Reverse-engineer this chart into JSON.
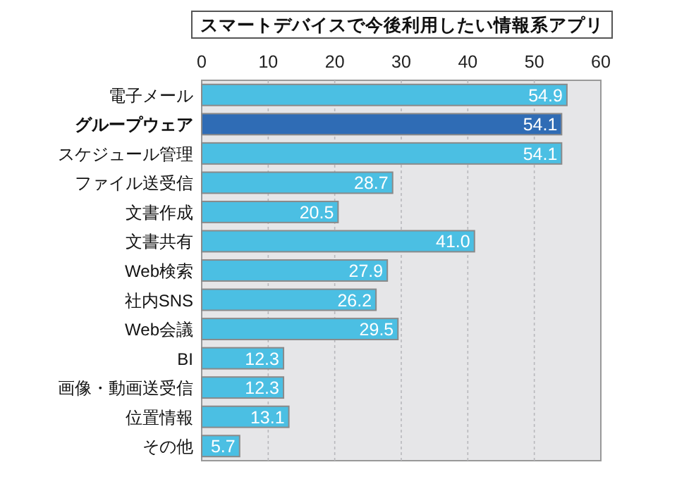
{
  "chart_data": {
    "type": "bar",
    "orientation": "horizontal",
    "title": "スマートデバイスで今後利用したい情報系アプリ",
    "categories": [
      "電子メール",
      "グループウェア",
      "スケジュール管理",
      "ファイル送受信",
      "文書作成",
      "文書共有",
      "Web検索",
      "社内SNS",
      "Web会議",
      "BI",
      "画像・動画送受信",
      "位置情報",
      "その他"
    ],
    "values": [
      54.9,
      54.1,
      54.1,
      28.7,
      20.5,
      41.0,
      27.9,
      26.2,
      29.5,
      12.3,
      12.3,
      13.1,
      5.7
    ],
    "value_labels": [
      "54.9",
      "54.1",
      "54.1",
      "28.7",
      "20.5",
      "41.0",
      "27.9",
      "26.2",
      "29.5",
      "12.3",
      "12.3",
      "13.1",
      "5.7"
    ],
    "colors": [
      "#4bbfe3",
      "#2f6cb5",
      "#4bbfe3",
      "#4bbfe3",
      "#4bbfe3",
      "#4bbfe3",
      "#4bbfe3",
      "#4bbfe3",
      "#4bbfe3",
      "#4bbfe3",
      "#4bbfe3",
      "#4bbfe3",
      "#4bbfe3"
    ],
    "xlim": [
      0,
      60
    ],
    "xticks": [
      0,
      10,
      20,
      30,
      40,
      50,
      60
    ],
    "grid": "x"
  }
}
